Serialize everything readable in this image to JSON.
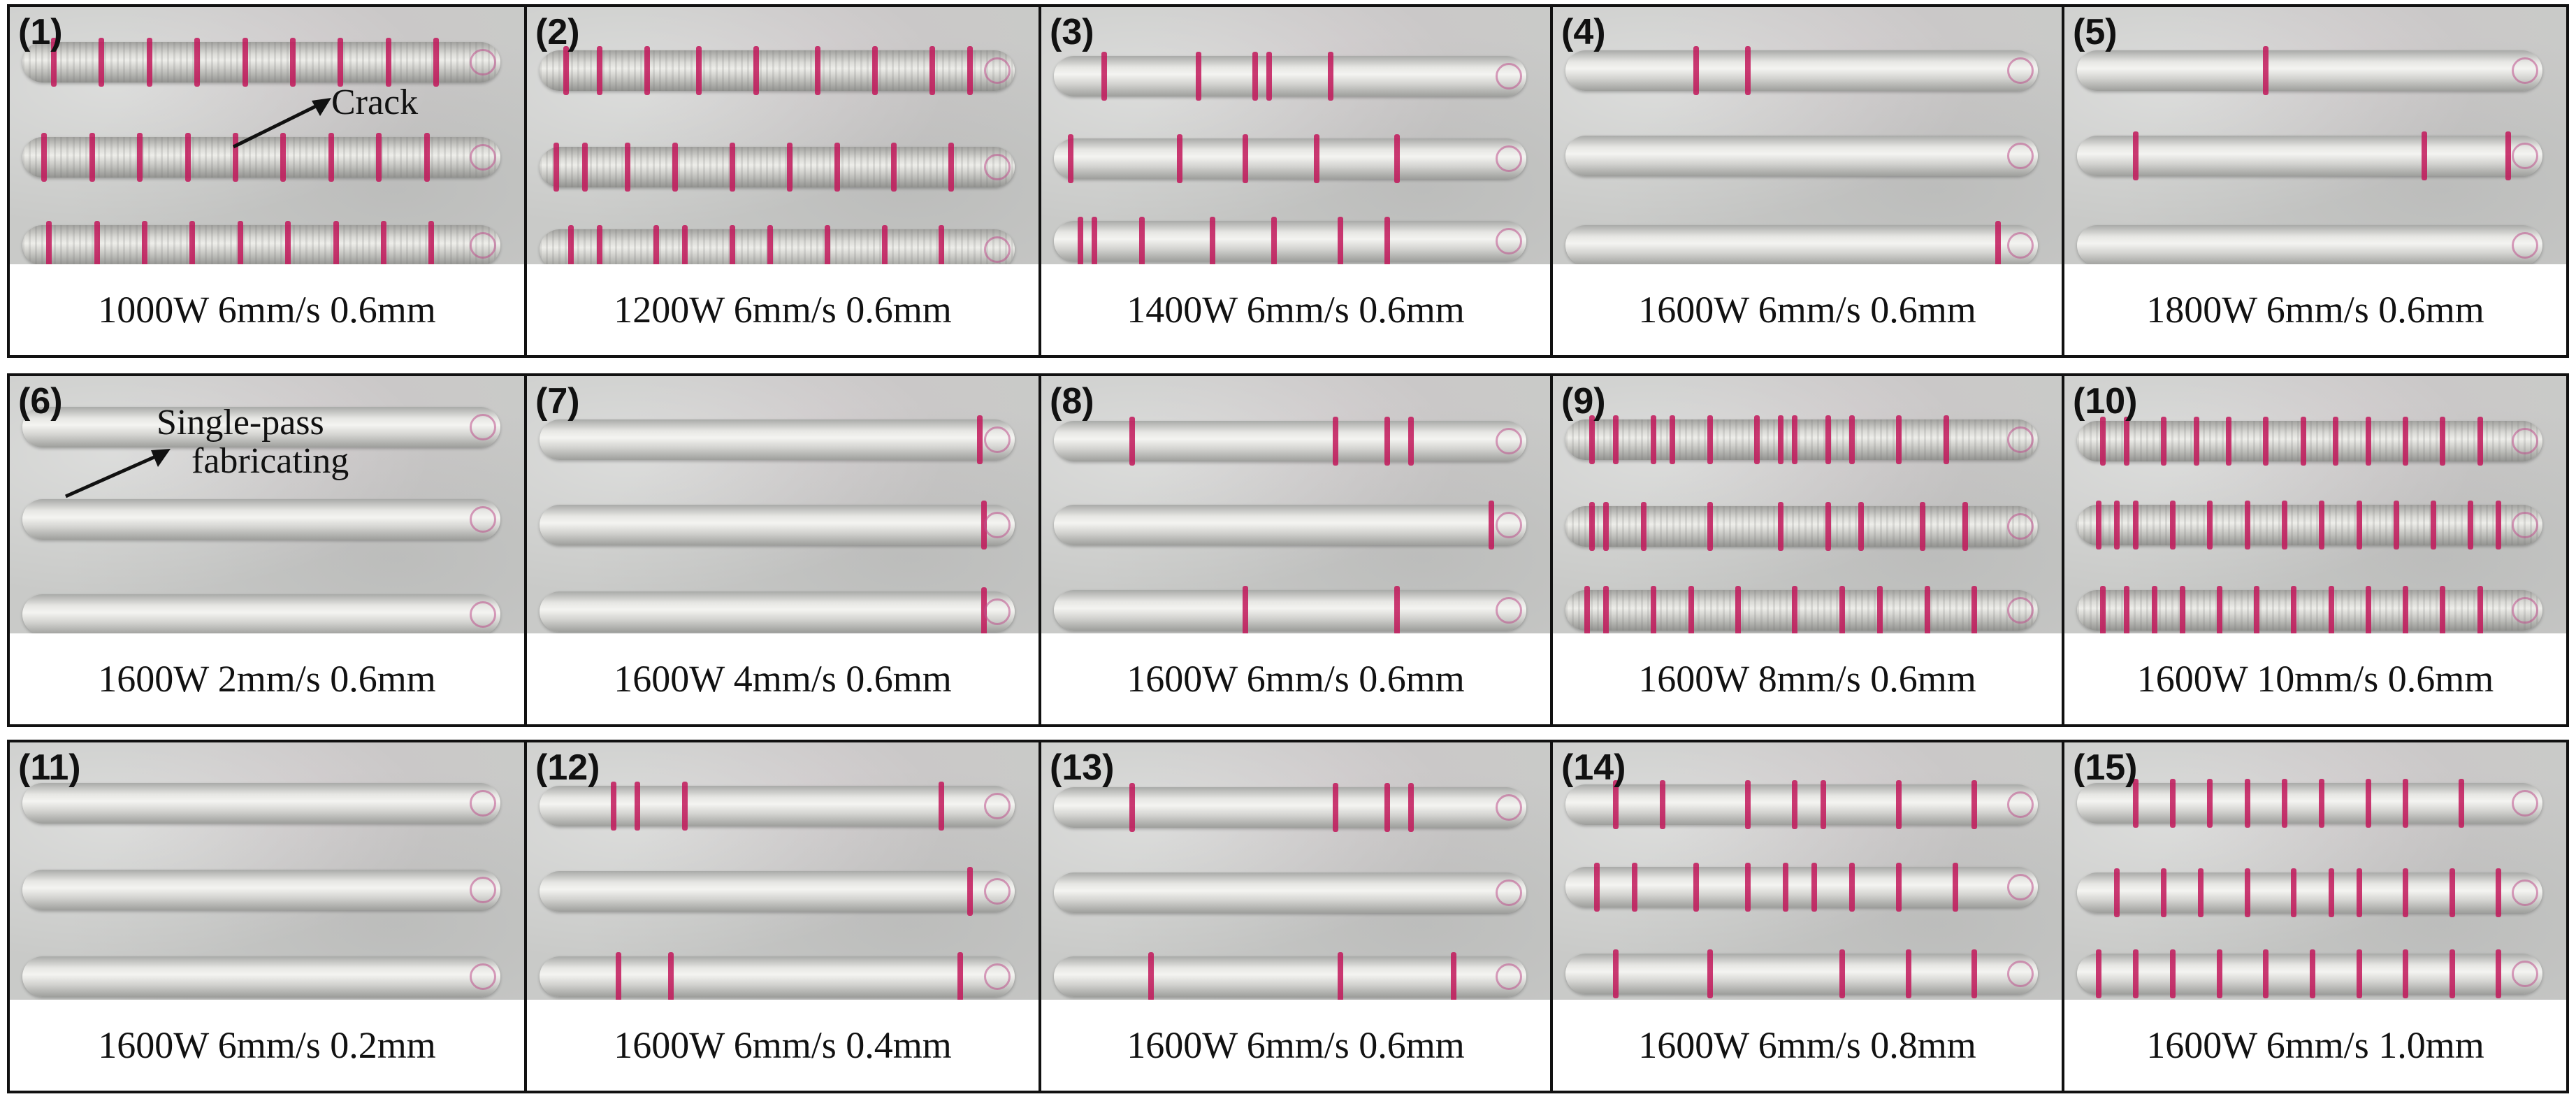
{
  "panels": [
    {
      "tag": "(1)",
      "caption": "1000W 6mm/s 0.6mm"
    },
    {
      "tag": "(2)",
      "caption": "1200W 6mm/s 0.6mm"
    },
    {
      "tag": "(3)",
      "caption": "1400W 6mm/s 0.6mm"
    },
    {
      "tag": "(4)",
      "caption": "1600W 6mm/s 0.6mm"
    },
    {
      "tag": "(5)",
      "caption": "1800W 6mm/s 0.6mm"
    },
    {
      "tag": "(6)",
      "caption": "1600W 2mm/s 0.6mm"
    },
    {
      "tag": "(7)",
      "caption": "1600W 4mm/s 0.6mm"
    },
    {
      "tag": "(8)",
      "caption": "1600W 6mm/s 0.6mm"
    },
    {
      "tag": "(9)",
      "caption": "1600W 8mm/s 0.6mm"
    },
    {
      "tag": "(10)",
      "caption": "1600W 10mm/s 0.6mm"
    },
    {
      "tag": "(11)",
      "caption": "1600W 6mm/s 0.2mm"
    },
    {
      "tag": "(12)",
      "caption": "1600W 6mm/s 0.4mm"
    },
    {
      "tag": "(13)",
      "caption": "1600W 6mm/s 0.6mm"
    },
    {
      "tag": "(14)",
      "caption": "1600W 6mm/s 0.8mm"
    },
    {
      "tag": "(15)",
      "caption": "1600W 6mm/s 1.0mm"
    }
  ],
  "annotations": {
    "crack_label": "Crack",
    "single_pass_line1": "Single-pass",
    "single_pass_line2": "fabricating"
  },
  "colors": {
    "crack": "#c2185b",
    "border": "#111111",
    "substrate": "#c9cac8"
  }
}
